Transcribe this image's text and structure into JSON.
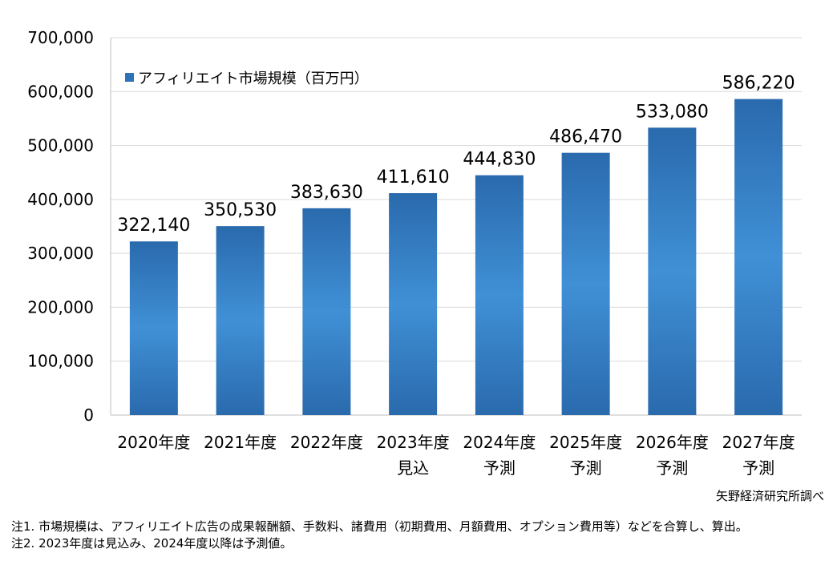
{
  "chart_data": {
    "type": "bar",
    "categories": [
      "2020年度",
      "2021年度",
      "2022年度",
      "2023年度",
      "2024年度",
      "2025年度",
      "2026年度",
      "2027年度"
    ],
    "category_sublabels": [
      "",
      "",
      "",
      "見込",
      "予測",
      "予測",
      "予測",
      "予測"
    ],
    "series": [
      {
        "name": "アフィリエイト市場規模（百万円）",
        "values": [
          322140,
          350530,
          383630,
          411610,
          444830,
          486470,
          533080,
          586220
        ],
        "data_labels": [
          "322,140",
          "350,530",
          "383,630",
          "411,610",
          "444,830",
          "486,470",
          "533,080",
          "586,220"
        ]
      }
    ],
    "y_ticks": [
      0,
      100000,
      200000,
      300000,
      400000,
      500000,
      600000,
      700000
    ],
    "y_tick_labels": [
      "0",
      "100,000",
      "200,000",
      "300,000",
      "400,000",
      "500,000",
      "600,000",
      "700,000"
    ],
    "ylim": [
      0,
      700000
    ],
    "grid": true,
    "legend_position": "top-left",
    "bar_color": "#2e73b8",
    "bar_highlight": "#4090d6",
    "grid_color": "#d9d9d9"
  },
  "source": "矢野経済研究所調べ",
  "notes": [
    "注1.  市場規模は、アフィリエイト広告の成果報酬額、手数料、諸費用（初期費用、月額費用、オプション費用等）などを合算し、算出。",
    "注2.  2023年度は見込み、2024年度以降は予測値。"
  ]
}
